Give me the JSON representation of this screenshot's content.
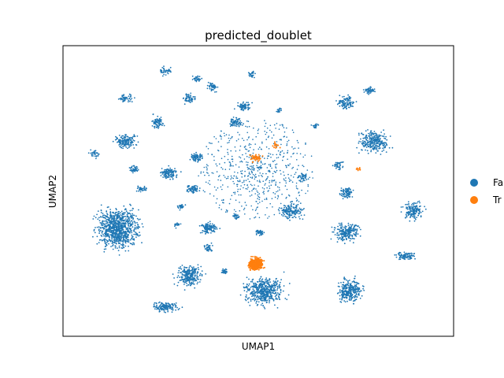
{
  "chart_data": {
    "type": "scatter",
    "title": "predicted_doublet",
    "xlabel": "UMAP1",
    "ylabel": "UMAP2",
    "grid": false,
    "xticks": [],
    "yticks": [],
    "legend": {
      "placement": "right",
      "entries": [
        {
          "label": "False",
          "visible_text": "Fa",
          "color": "#1f77b4"
        },
        {
          "label": "True",
          "visible_text": "Tr",
          "color": "#ff7f0e"
        }
      ]
    },
    "series": [
      {
        "name": "False",
        "color": "#1f77b4",
        "note_points": "dense clusters across embedding"
      },
      {
        "name": "True",
        "color": "#ff7f0e",
        "note_points": "concentrated bottom-center cluster and sparse in central radial structure"
      }
    ]
  }
}
